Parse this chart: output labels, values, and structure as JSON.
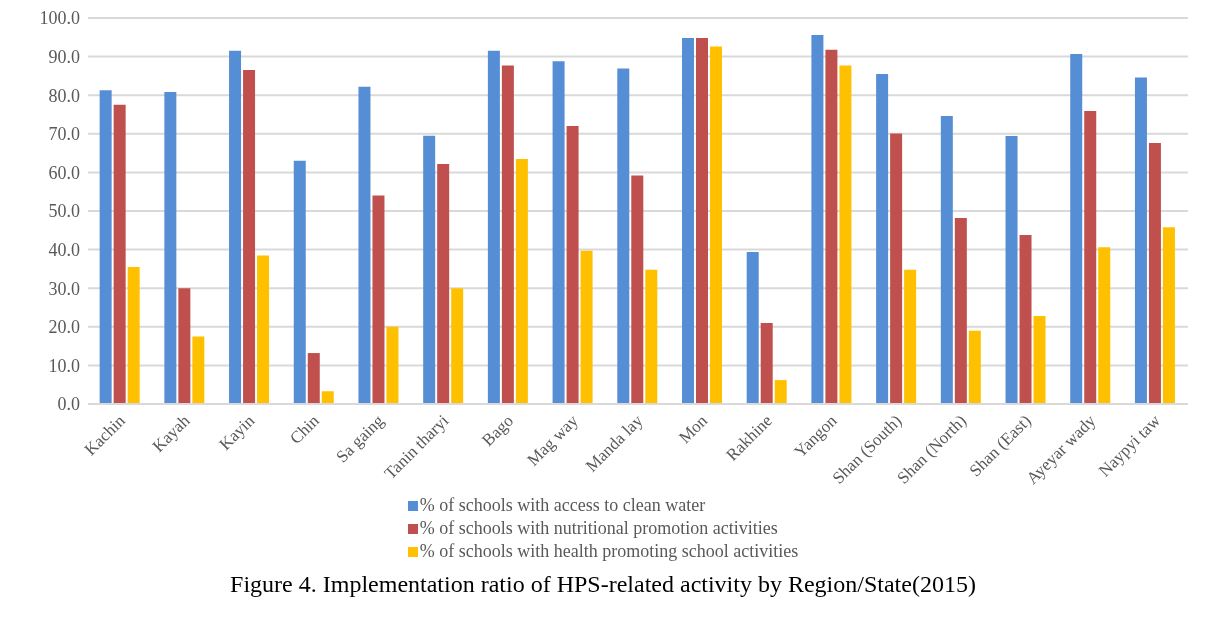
{
  "chart_data": {
    "type": "bar",
    "title": "Figure 4. Implementation ratio of HPS-related activity by Region/State(2015)",
    "categories": [
      "Kachin",
      "Kayah",
      "Kayin",
      "Chin",
      "Sa gaing",
      "Tanin tharyi",
      "Bago",
      "Mag way",
      "Manda lay",
      "Mon",
      "Rakhine",
      "Yangon",
      "Shan (South)",
      "Shan (North)",
      "Shan (East)",
      "Ayeyar wady",
      "Naypyi taw"
    ],
    "series": [
      {
        "name": "% of schools with access to clean water",
        "color": "#558ed5",
        "values": [
          81.3,
          80.8,
          91.5,
          63.0,
          82.2,
          69.5,
          91.5,
          88.8,
          86.9,
          94.8,
          39.4,
          95.6,
          85.5,
          74.6,
          69.4,
          90.7,
          84.6
        ]
      },
      {
        "name": "% of schools with nutritional promotion activities",
        "color": "#c0504d",
        "values": [
          77.5,
          30.0,
          86.5,
          13.2,
          54.0,
          62.2,
          87.7,
          72.0,
          59.2,
          94.8,
          21.0,
          91.8,
          70.1,
          48.2,
          43.8,
          75.9,
          67.6
        ]
      },
      {
        "name": "% of schools with health promoting school activities",
        "color": "#ffc000",
        "values": [
          35.5,
          17.5,
          38.5,
          3.3,
          20.0,
          30.0,
          63.5,
          39.7,
          34.8,
          92.6,
          6.2,
          87.7,
          34.8,
          19.0,
          22.8,
          40.6,
          45.8
        ]
      }
    ],
    "ylim": [
      0,
      100
    ],
    "yticks": [
      {
        "value": 0,
        "label": "0.0"
      },
      {
        "value": 10,
        "label": "10.0"
      },
      {
        "value": 20,
        "label": "20.0"
      },
      {
        "value": 30,
        "label": "30.0"
      },
      {
        "value": 40,
        "label": "40.0"
      },
      {
        "value": 50,
        "label": "50.0"
      },
      {
        "value": 60,
        "label": "60.0"
      },
      {
        "value": 70,
        "label": "70.0"
      },
      {
        "value": 80,
        "label": "80.0"
      },
      {
        "value": 90,
        "label": "90.0"
      },
      {
        "value": 100,
        "label": "100.0"
      }
    ],
    "grid": "y",
    "legend": "bottom"
  }
}
